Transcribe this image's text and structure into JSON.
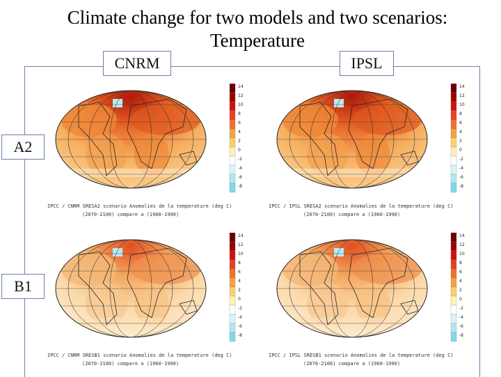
{
  "title_line1": "Climate change for two models and two scenarios:",
  "title_line2": "Temperature",
  "models": [
    "CNRM",
    "IPSL"
  ],
  "scenarios": [
    "A2",
    "B1"
  ],
  "colorbar_ticks": [
    "14",
    "12",
    "10",
    "8",
    "6",
    "4",
    "2",
    "0",
    "-2",
    "-4",
    "-6",
    "-8"
  ],
  "panels": [
    {
      "id": "cnrm-a2",
      "caption1": "IPCC / CNRM   SRESA2 scenario   Anomalies de la temperature (deg C)",
      "caption2": "(2070-2100) compare a (1960-1990)"
    },
    {
      "id": "ipsl-a2",
      "caption1": "IPCC / IPSL   SRESA2 scenario   Anomalies de la temperature (deg C)",
      "caption2": "(2070-2100) compare a (1960-1990)"
    },
    {
      "id": "cnrm-b1",
      "caption1": "IPCC / CNRM   SRESB1 scenario   Anomalies de la temperature (deg C)",
      "caption2": "(2070-2100) compare a (1960-1990)"
    },
    {
      "id": "ipsl-b1",
      "caption1": "IPCC / IPSL   SRESB1 scenario   Anomalies de la temperature (deg C)",
      "caption2": "(2070-2100) compare a (1960-1990)"
    }
  ]
}
